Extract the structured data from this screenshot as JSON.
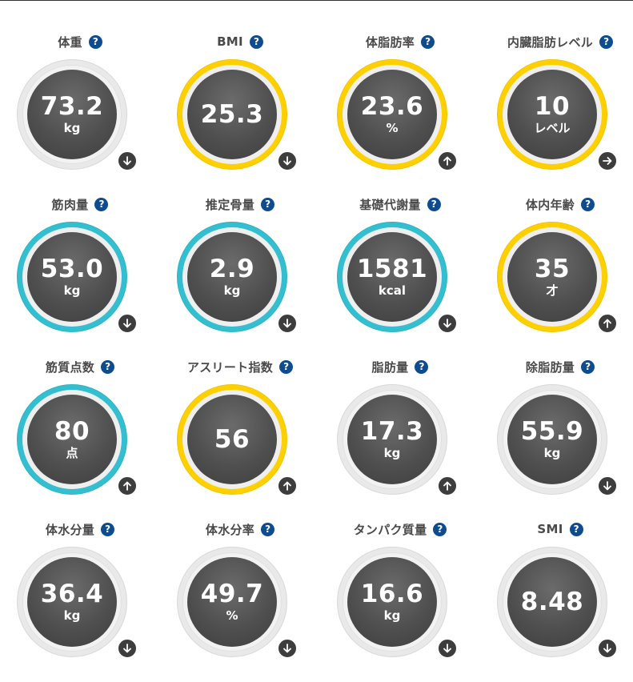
{
  "metrics": [
    {
      "title": "体重",
      "value": "73.2",
      "unit": "kg",
      "ring": "gray",
      "trend": "down"
    },
    {
      "title": "BMI",
      "value": "25.3",
      "unit": "",
      "ring": "yellow",
      "trend": "down"
    },
    {
      "title": "体脂肪率",
      "value": "23.6",
      "unit": "%",
      "ring": "yellow",
      "trend": "up"
    },
    {
      "title": "内臓脂肪レベル",
      "value": "10",
      "unit": "レベル",
      "ring": "yellow",
      "trend": "right"
    },
    {
      "title": "筋肉量",
      "value": "53.0",
      "unit": "kg",
      "ring": "teal",
      "trend": "down"
    },
    {
      "title": "推定骨量",
      "value": "2.9",
      "unit": "kg",
      "ring": "teal",
      "trend": "down"
    },
    {
      "title": "基礎代謝量",
      "value": "1581",
      "unit": "kcal",
      "ring": "teal",
      "trend": "down"
    },
    {
      "title": "体内年齢",
      "value": "35",
      "unit": "才",
      "ring": "yellow",
      "trend": "up"
    },
    {
      "title": "筋質点数",
      "value": "80",
      "unit": "点",
      "ring": "teal",
      "trend": "up"
    },
    {
      "title": "アスリート指数",
      "value": "56",
      "unit": "",
      "ring": "yellow",
      "trend": "up"
    },
    {
      "title": "脂肪量",
      "value": "17.3",
      "unit": "kg",
      "ring": "gray",
      "trend": "up"
    },
    {
      "title": "除脂肪量",
      "value": "55.9",
      "unit": "kg",
      "ring": "gray",
      "trend": "down"
    },
    {
      "title": "体水分量",
      "value": "36.4",
      "unit": "kg",
      "ring": "gray",
      "trend": "down"
    },
    {
      "title": "体水分率",
      "value": "49.7",
      "unit": "%",
      "ring": "gray",
      "trend": "down"
    },
    {
      "title": "タンパク質量",
      "value": "16.6",
      "unit": "kg",
      "ring": "gray",
      "trend": "down"
    },
    {
      "title": "SMI",
      "value": "8.48",
      "unit": "",
      "ring": "gray",
      "trend": "down"
    }
  ],
  "help_icon_glyph": "?",
  "colors": {
    "ring_gray": "#e9e9e9",
    "ring_yellow": "#ffd000",
    "ring_teal": "#33bfcf",
    "help_icon": "#0e4c8f",
    "gauge_face": "#4f4f4f",
    "trend_icon": "#3d3d3d"
  },
  "icons": {
    "help": "question-icon",
    "trend_up": "arrow-up-icon",
    "trend_down": "arrow-down-icon",
    "trend_right": "arrow-right-icon"
  }
}
